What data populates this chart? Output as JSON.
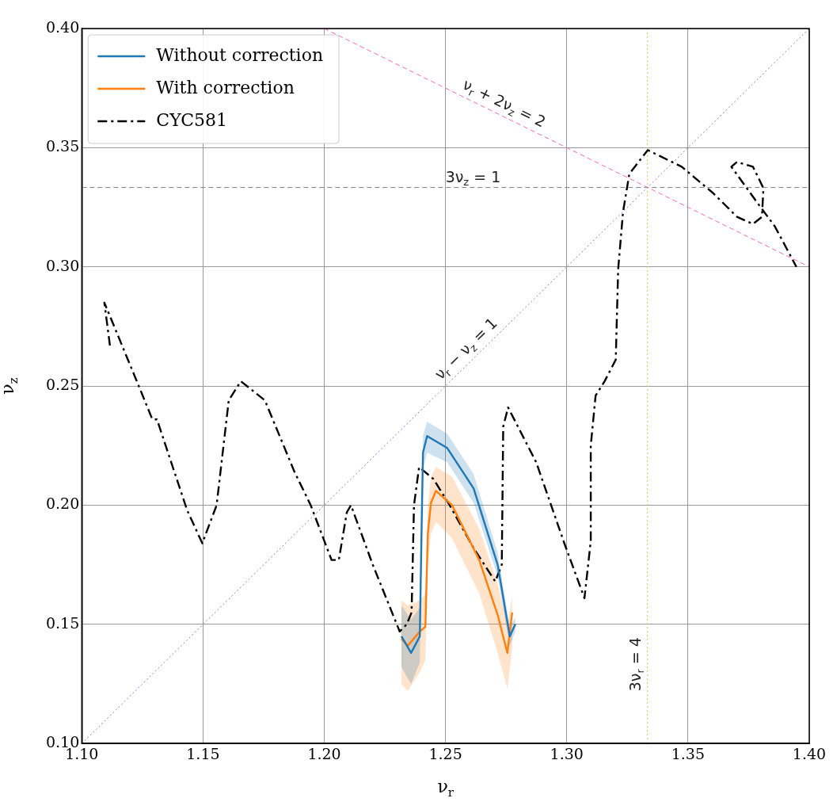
{
  "chart_data": {
    "type": "line",
    "xlabel": "ν$_{r}$",
    "ylabel": "ν$_{z}$",
    "xlim": [
      1.1,
      1.4
    ],
    "xticks": [
      {
        "value": 1.1,
        "label": "1.10"
      },
      {
        "value": 1.15,
        "label": "1.15"
      },
      {
        "value": 1.2,
        "label": "1.20"
      },
      {
        "value": 1.25,
        "label": "1.25"
      },
      {
        "value": 1.3,
        "label": "1.30"
      },
      {
        "value": 1.35,
        "label": "1.35"
      },
      {
        "value": 1.4,
        "label": "1.40"
      }
    ],
    "ylim": [
      0.1,
      0.4
    ],
    "yticks": [
      {
        "value": 0.1,
        "label": "0.10"
      },
      {
        "value": 0.15,
        "label": "0.15"
      },
      {
        "value": 0.2,
        "label": "0.20"
      },
      {
        "value": 0.25,
        "label": "0.25"
      },
      {
        "value": 0.3,
        "label": "0.30"
      },
      {
        "value": 0.35,
        "label": "0.35"
      },
      {
        "value": 0.4,
        "label": "0.40"
      }
    ],
    "grid": true,
    "legend": "top left",
    "marker": "none",
    "series": [
      {
        "name": "Without correction",
        "color": "#1f77b4",
        "line_style": "solid",
        "x": [
          1.2318,
          1.2358,
          1.2394,
          1.2401,
          1.2407,
          1.2424,
          1.2507,
          1.2616,
          1.2715,
          1.2765,
          1.2788
        ],
        "values": [
          0.145,
          0.138,
          0.145,
          0.188,
          0.222,
          0.229,
          0.224,
          0.207,
          0.175,
          0.145,
          0.15
        ],
        "lower": [
          0.132,
          0.125,
          0.134,
          0.18,
          0.215,
          0.222,
          0.218,
          0.201,
          0.17,
          0.141,
          0.147
        ],
        "upper": [
          0.158,
          0.152,
          0.157,
          0.196,
          0.229,
          0.235,
          0.23,
          0.213,
          0.18,
          0.149,
          0.153
        ]
      },
      {
        "name": "With correction",
        "color": "#ff7f0e",
        "line_style": "solid",
        "x": [
          1.2318,
          1.2344,
          1.2394,
          1.2417,
          1.2427,
          1.244,
          1.246,
          1.2527,
          1.2639,
          1.2715,
          1.2755,
          1.2775
        ],
        "values": [
          0.144,
          0.141,
          0.147,
          0.149,
          0.188,
          0.201,
          0.206,
          0.2,
          0.177,
          0.154,
          0.138,
          0.155
        ],
        "lower": [
          0.125,
          0.122,
          0.13,
          0.135,
          0.175,
          0.188,
          0.193,
          0.186,
          0.163,
          0.138,
          0.123,
          0.14
        ],
        "upper": [
          0.16,
          0.158,
          0.16,
          0.163,
          0.2,
          0.212,
          0.216,
          0.212,
          0.19,
          0.167,
          0.15,
          0.162
        ]
      },
      {
        "name": "CYC581",
        "color": "#000000",
        "line_style": "dashdot",
        "x": [
          1.1116,
          1.1093,
          1.1235,
          1.1291,
          1.131,
          1.1434,
          1.1497,
          1.1556,
          1.1606,
          1.1656,
          1.1755,
          1.1877,
          1.1944,
          1.203,
          1.206,
          1.2093,
          1.211,
          1.22,
          1.2311,
          1.234,
          1.236,
          1.237,
          1.2391,
          1.245,
          1.2517,
          1.2616,
          1.2705,
          1.2732,
          1.2738,
          1.2758,
          1.2874,
          1.299,
          1.3073,
          1.3099,
          1.3099,
          1.3119,
          1.3156,
          1.3202,
          1.3212,
          1.3232,
          1.3258,
          1.3334,
          1.3474,
          1.3603,
          1.3702,
          1.3768,
          1.3805,
          1.3811,
          1.3768,
          1.3702,
          1.3679,
          1.3778,
          1.3858,
          1.3947
        ],
        "values": [
          0.267,
          0.285,
          0.25,
          0.236,
          0.236,
          0.198,
          0.184,
          0.2,
          0.244,
          0.252,
          0.244,
          0.214,
          0.2,
          0.177,
          0.177,
          0.197,
          0.2,
          0.175,
          0.147,
          0.15,
          0.155,
          0.2,
          0.216,
          0.211,
          0.2,
          0.182,
          0.168,
          0.175,
          0.233,
          0.241,
          0.218,
          0.184,
          0.161,
          0.185,
          0.225,
          0.246,
          0.252,
          0.261,
          0.299,
          0.323,
          0.339,
          0.349,
          0.342,
          0.331,
          0.321,
          0.318,
          0.321,
          0.333,
          0.342,
          0.344,
          0.342,
          0.328,
          0.317,
          0.3
        ]
      },
      {
        "type": "line",
        "color": "#9370db",
        "line_style": "dotted",
        "x": [
          1.1,
          1.4
        ],
        "values": [
          0.1,
          0.4
        ]
      },
      {
        "type": "line",
        "color": "#ff69b4",
        "line_style": "dashed",
        "x": [
          1.2,
          1.4
        ],
        "values": [
          0.4,
          0.3
        ]
      }
    ],
    "ref_lines": [
      {
        "axis": "y",
        "value": 0.3333,
        "color": "#808080",
        "line_style": "dashed"
      },
      {
        "axis": "x",
        "value": 1.3333,
        "color": "#cccc44",
        "line_style": "dotted"
      }
    ],
    "annotations": [
      "ν$_{r}$ − ν$_{z}$ = 1",
      "ν$_{r}$ + 2ν$_{z}$ = 2",
      "3ν$_{z}$ = 1",
      "3ν$_{r}$ = 4"
    ]
  }
}
